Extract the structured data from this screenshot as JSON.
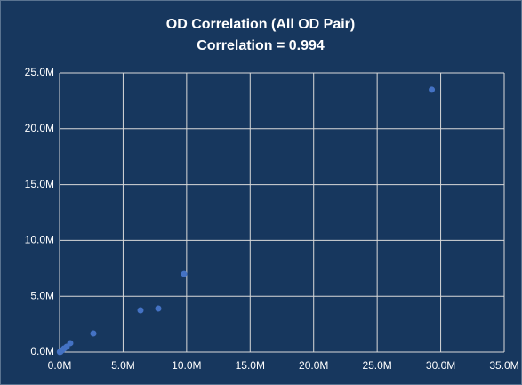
{
  "chart_data": {
    "type": "scatter",
    "title": "OD Correlation (All OD Pair)",
    "subtitle": "Correlation = 0.994",
    "x": [
      20000,
      70000,
      200000,
      350000,
      560000,
      840000,
      2660000,
      6370000,
      7770000,
      9800000,
      29300000
    ],
    "values": [
      10000,
      30000,
      160000,
      320000,
      480000,
      800000,
      1670000,
      3740000,
      3900000,
      7000000,
      23500000
    ],
    "color": "#4472c4",
    "xlim": [
      0,
      35000000
    ],
    "xticks": [
      {
        "value": 0,
        "label": "0.0M"
      },
      {
        "value": 5000000,
        "label": "5.0M"
      },
      {
        "value": 10000000,
        "label": "10.0M"
      },
      {
        "value": 15000000,
        "label": "15.0M"
      },
      {
        "value": 20000000,
        "label": "20.0M"
      },
      {
        "value": 25000000,
        "label": "25.0M"
      },
      {
        "value": 30000000,
        "label": "30.0M"
      },
      {
        "value": 35000000,
        "label": "35.0M"
      }
    ],
    "ylim": [
      0,
      25000000
    ],
    "yticks": [
      {
        "value": 0,
        "label": "0.0M"
      },
      {
        "value": 5000000,
        "label": "5.0M"
      },
      {
        "value": 10000000,
        "label": "10.0M"
      },
      {
        "value": 15000000,
        "label": "15.0M"
      },
      {
        "value": 20000000,
        "label": "20.0M"
      },
      {
        "value": 25000000,
        "label": "25.0M"
      }
    ],
    "grid": true
  }
}
